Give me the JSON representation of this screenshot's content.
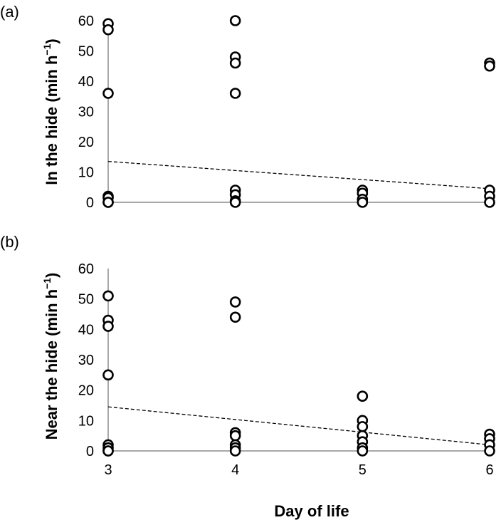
{
  "chart_data": [
    {
      "type": "scatter",
      "panel_label": "(a)",
      "ylabel": "In the hide (min h",
      "ylabel_sup": "−1",
      "ylabel_close": ")",
      "xlabel": "",
      "ylim": [
        0,
        60
      ],
      "xlim": [
        3,
        6
      ],
      "yticks": [
        0,
        10,
        20,
        30,
        40,
        50,
        60
      ],
      "xticks": [
        3,
        4,
        5,
        6
      ],
      "show_xtick_labels": false,
      "points": [
        {
          "x": 3,
          "y": 59
        },
        {
          "x": 3,
          "y": 57
        },
        {
          "x": 3,
          "y": 36
        },
        {
          "x": 3,
          "y": 2
        },
        {
          "x": 3,
          "y": 1.5
        },
        {
          "x": 3,
          "y": 0
        },
        {
          "x": 3,
          "y": 0
        },
        {
          "x": 4,
          "y": 60
        },
        {
          "x": 4,
          "y": 48
        },
        {
          "x": 4,
          "y": 46
        },
        {
          "x": 4,
          "y": 36
        },
        {
          "x": 4,
          "y": 4
        },
        {
          "x": 4,
          "y": 2.5
        },
        {
          "x": 4,
          "y": 0.5
        },
        {
          "x": 4,
          "y": 0
        },
        {
          "x": 5,
          "y": 4
        },
        {
          "x": 5,
          "y": 3
        },
        {
          "x": 5,
          "y": 1
        },
        {
          "x": 5,
          "y": 0
        },
        {
          "x": 6,
          "y": 46
        },
        {
          "x": 6,
          "y": 45
        },
        {
          "x": 6,
          "y": 4
        },
        {
          "x": 6,
          "y": 2
        },
        {
          "x": 6,
          "y": 0
        }
      ],
      "trendline": {
        "x": [
          3,
          6
        ],
        "y": [
          13.5,
          4.5
        ],
        "style": "dashed"
      }
    },
    {
      "type": "scatter",
      "panel_label": "(b)",
      "ylabel": "Near the hide (min h",
      "ylabel_sup": "−1",
      "ylabel_close": ")",
      "xlabel": "Day of life",
      "ylim": [
        0,
        60
      ],
      "xlim": [
        3,
        6
      ],
      "yticks": [
        0,
        10,
        20,
        30,
        40,
        50,
        60
      ],
      "xticks": [
        3,
        4,
        5,
        6
      ],
      "show_xtick_labels": true,
      "points": [
        {
          "x": 3,
          "y": 51
        },
        {
          "x": 3,
          "y": 43
        },
        {
          "x": 3,
          "y": 41
        },
        {
          "x": 3,
          "y": 25
        },
        {
          "x": 3,
          "y": 2
        },
        {
          "x": 3,
          "y": 1
        },
        {
          "x": 3,
          "y": 0
        },
        {
          "x": 3,
          "y": 0
        },
        {
          "x": 4,
          "y": 49
        },
        {
          "x": 4,
          "y": 44
        },
        {
          "x": 4,
          "y": 6
        },
        {
          "x": 4,
          "y": 5
        },
        {
          "x": 4,
          "y": 2
        },
        {
          "x": 4,
          "y": 1
        },
        {
          "x": 4,
          "y": 0
        },
        {
          "x": 5,
          "y": 18
        },
        {
          "x": 5,
          "y": 10
        },
        {
          "x": 5,
          "y": 8
        },
        {
          "x": 5,
          "y": 5
        },
        {
          "x": 5,
          "y": 3
        },
        {
          "x": 5,
          "y": 1
        },
        {
          "x": 5,
          "y": 0
        },
        {
          "x": 6,
          "y": 5.5
        },
        {
          "x": 6,
          "y": 4
        },
        {
          "x": 6,
          "y": 2
        },
        {
          "x": 6,
          "y": 0
        }
      ],
      "trendline": {
        "x": [
          3,
          6
        ],
        "y": [
          14.5,
          2
        ],
        "style": "dashed"
      }
    }
  ]
}
